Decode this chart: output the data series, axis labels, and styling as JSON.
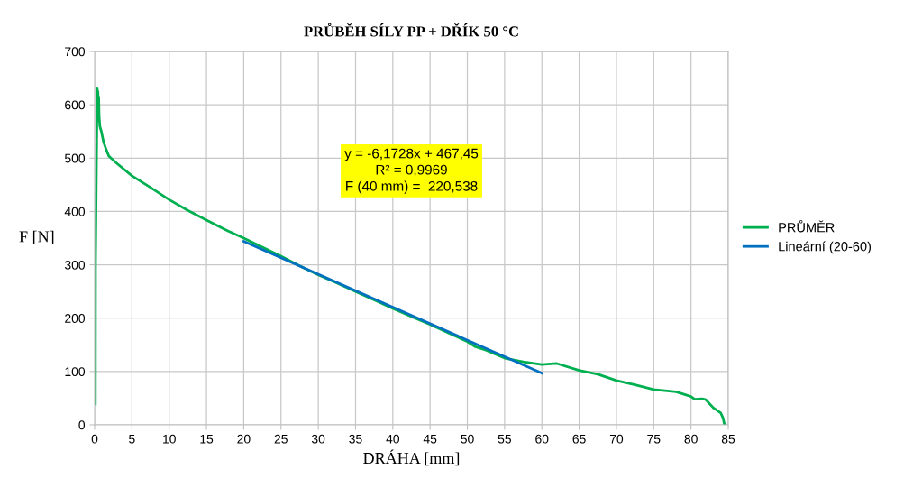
{
  "chart_data": {
    "type": "line",
    "title": "PRŮBĚH SÍLY PP + DŘÍK 50 °C",
    "xlabel": "DRÁHA [mm]",
    "ylabel": "F [N]",
    "series": [
      {
        "name": "PRŮMĚR",
        "color": "#00b050",
        "x": [
          0.1,
          0.12,
          0.2,
          0.3,
          0.35,
          0.4,
          0.45,
          0.5,
          0.55,
          0.6,
          0.7,
          0.9,
          1.2,
          1.5,
          1.9,
          3,
          5,
          7.5,
          10,
          12.5,
          15,
          17.5,
          20,
          22.5,
          25,
          27.5,
          30,
          32.5,
          35,
          37.5,
          40,
          42.5,
          45,
          47.5,
          50,
          51,
          52.5,
          55,
          57.5,
          60,
          62,
          65,
          67.5,
          70,
          72.5,
          75,
          78,
          80,
          80.5,
          81.5,
          82,
          83,
          84,
          84.3,
          84.5
        ],
        "values": [
          39,
          300,
          420,
          560,
          630,
          600,
          625,
          590,
          615,
          580,
          560,
          550,
          530,
          518,
          504,
          490,
          467,
          445,
          422,
          402,
          384,
          366,
          350,
          333,
          316,
          298,
          281,
          266,
          250,
          234,
          218,
          203,
          188,
          172,
          156,
          147,
          140,
          125,
          118,
          113,
          115,
          102,
          95,
          83,
          75,
          66,
          62,
          53,
          48,
          49,
          47,
          32,
          22,
          13,
          0
        ]
      },
      {
        "name": "Lineární (20-60)",
        "color": "#0070c0",
        "x": [
          20,
          60
        ],
        "values": [
          344,
          97
        ]
      }
    ],
    "xlim": [
      0,
      85
    ],
    "xticks": [
      0,
      5,
      10,
      15,
      20,
      25,
      30,
      35,
      40,
      45,
      50,
      55,
      60,
      65,
      70,
      75,
      80,
      85
    ],
    "ylim": [
      0,
      700
    ],
    "yticks": [
      0,
      100,
      200,
      300,
      400,
      500,
      600,
      700
    ],
    "grid": true,
    "legend": "right",
    "marker": "none",
    "line_style": "solid",
    "annotations": [
      "y = -6,1728x + 467,45\nR² = 0,9969\nF (40 mm) =  220,538"
    ]
  }
}
